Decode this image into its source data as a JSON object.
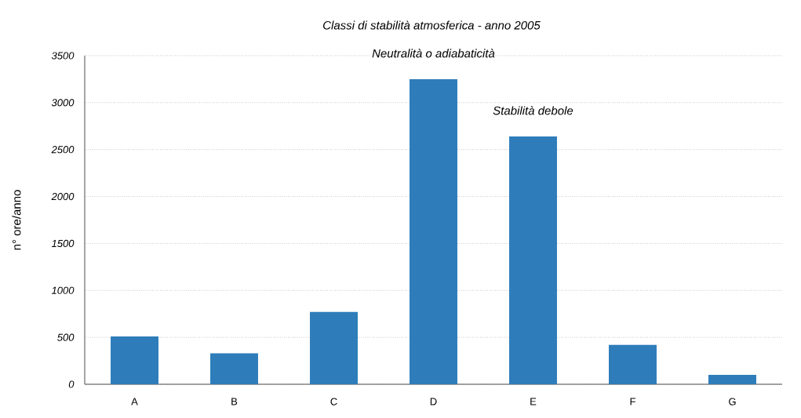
{
  "chart_data": {
    "type": "bar",
    "title": "Classi di stabilità atmosferica - anno 2005",
    "ylabel": "n° ore/anno",
    "categories": [
      "A",
      "B",
      "C",
      "D",
      "E",
      "F",
      "G"
    ],
    "values": [
      510,
      330,
      770,
      3250,
      2640,
      420,
      100
    ],
    "color": "#2e7dba",
    "ylim": [
      0,
      3500
    ],
    "yticks": [
      0,
      500,
      1000,
      1500,
      2000,
      2500,
      3000,
      3500
    ],
    "grid": "y",
    "annotations": [
      {
        "text": "Neutralità o adiabaticità",
        "x": "D",
        "y": 3250
      },
      {
        "text": "Stabilità debole",
        "x": "E",
        "y": 2640
      }
    ]
  }
}
